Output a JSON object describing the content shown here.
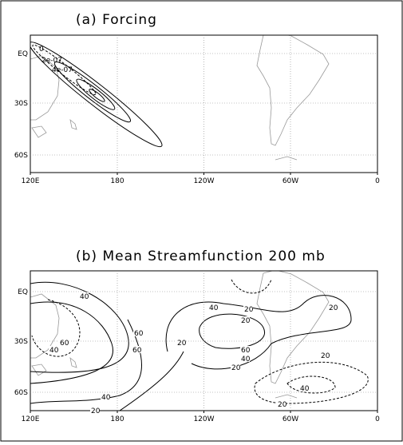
{
  "panels": [
    {
      "title": "(a) Forcing",
      "xticks": [
        "120E",
        "180",
        "120W",
        "60W",
        "0"
      ],
      "yticks": [
        "EQ",
        "30S",
        "60S"
      ],
      "contour_labels": [
        "0",
        "2e-07",
        "4e-07"
      ]
    },
    {
      "title": "(b) Mean Streamfunction  200 mb",
      "xticks": [
        "120E",
        "180",
        "120W",
        "60W",
        "0"
      ],
      "yticks": [
        "EQ",
        "30S",
        "60S"
      ],
      "contour_labels": [
        "40",
        "60",
        "40",
        "60",
        "60",
        "20",
        "40",
        "20",
        "20",
        "60",
        "40",
        "20",
        "20",
        "20",
        "40",
        "20",
        "40",
        "20"
      ]
    }
  ]
}
